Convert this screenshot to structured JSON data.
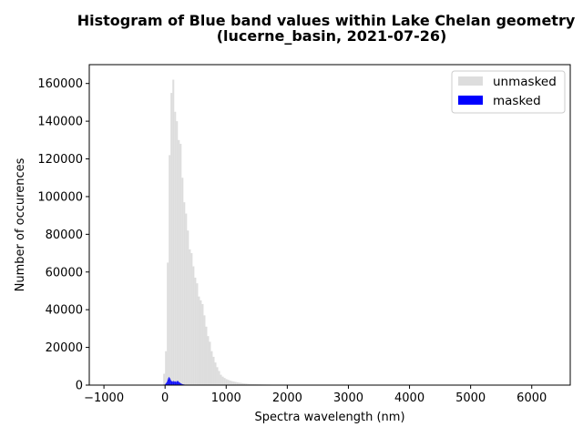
{
  "chart_data": {
    "type": "bar",
    "title": "Histogram of Blue band values within Lake Chelan geometry",
    "subtitle": "(lucerne_basin, 2021-07-26)",
    "xlabel": "Spectra wavelength (nm)",
    "ylabel": "Number of occurences",
    "xlim": [
      -1240,
      6630
    ],
    "ylim": [
      0,
      170000
    ],
    "x_ticks": [
      -1000,
      0,
      1000,
      2000,
      3000,
      4000,
      5000,
      6000
    ],
    "y_ticks": [
      0,
      20000,
      40000,
      60000,
      80000,
      100000,
      120000,
      140000,
      160000
    ],
    "x_tick_labels": [
      "−1000",
      "0",
      "1000",
      "2000",
      "3000",
      "4000",
      "5000",
      "6000"
    ],
    "y_tick_labels": [
      "0",
      "20000",
      "40000",
      "60000",
      "80000",
      "100000",
      "120000",
      "140000",
      "160000"
    ],
    "grid": false,
    "legend_position": "top-right",
    "bin_width": 30,
    "series": [
      {
        "name": "unmasked",
        "color": "#dddddd",
        "bin_starts": [
          -30,
          0,
          30,
          60,
          90,
          120,
          150,
          180,
          210,
          240,
          270,
          300,
          330,
          360,
          390,
          420,
          450,
          480,
          510,
          540,
          570,
          600,
          630,
          660,
          690,
          720,
          750,
          780,
          810,
          840,
          870,
          900,
          930,
          960,
          990,
          1020,
          1050,
          1080,
          1110,
          1140,
          1170,
          1200,
          1230,
          1260,
          1290,
          1320,
          1350,
          1380,
          1410,
          1440,
          1470,
          1500,
          1530,
          1560,
          1590,
          1620,
          1650,
          1680,
          1710,
          1740,
          1770,
          1800,
          1830,
          1860,
          1890,
          1920,
          1950,
          1980,
          2010,
          2040
        ],
        "values": [
          6000,
          18000,
          65000,
          122000,
          155000,
          162000,
          145000,
          140000,
          130000,
          128000,
          110000,
          97000,
          91000,
          82000,
          72000,
          70000,
          63000,
          57000,
          54000,
          47000,
          45000,
          43000,
          37000,
          31000,
          26000,
          23000,
          18000,
          15000,
          12000,
          9500,
          7500,
          5500,
          4500,
          3800,
          3200,
          2800,
          2400,
          2100,
          1900,
          1700,
          1500,
          1300,
          1150,
          1000,
          900,
          800,
          700,
          650,
          600,
          550,
          500,
          450,
          420,
          390,
          360,
          330,
          300,
          280,
          260,
          240,
          220,
          200,
          180,
          160,
          150,
          140,
          120,
          100,
          80,
          60
        ]
      },
      {
        "name": "masked",
        "color": "#0000ff",
        "bin_starts": [
          -20,
          -10,
          0,
          10,
          20,
          30,
          40,
          50,
          60,
          70,
          80,
          90,
          100,
          110,
          120,
          130,
          140,
          150,
          160,
          170,
          180,
          190,
          200,
          210,
          220,
          230,
          240,
          250,
          260,
          270,
          280,
          290,
          300,
          310,
          320,
          330,
          340,
          350,
          360,
          370,
          380,
          390,
          400,
          420,
          440,
          460,
          480,
          500
        ],
        "values": [
          200,
          300,
          600,
          900,
          1400,
          2000,
          3000,
          3800,
          4300,
          3900,
          3200,
          2600,
          2200,
          2000,
          1900,
          2300,
          1700,
          2000,
          1800,
          2100,
          1600,
          1900,
          2400,
          2000,
          1700,
          1500,
          1200,
          1000,
          800,
          600,
          500,
          400,
          350,
          300,
          250,
          200,
          150,
          120,
          100,
          80,
          60,
          50,
          40,
          30,
          20,
          15,
          10,
          5
        ]
      }
    ]
  }
}
